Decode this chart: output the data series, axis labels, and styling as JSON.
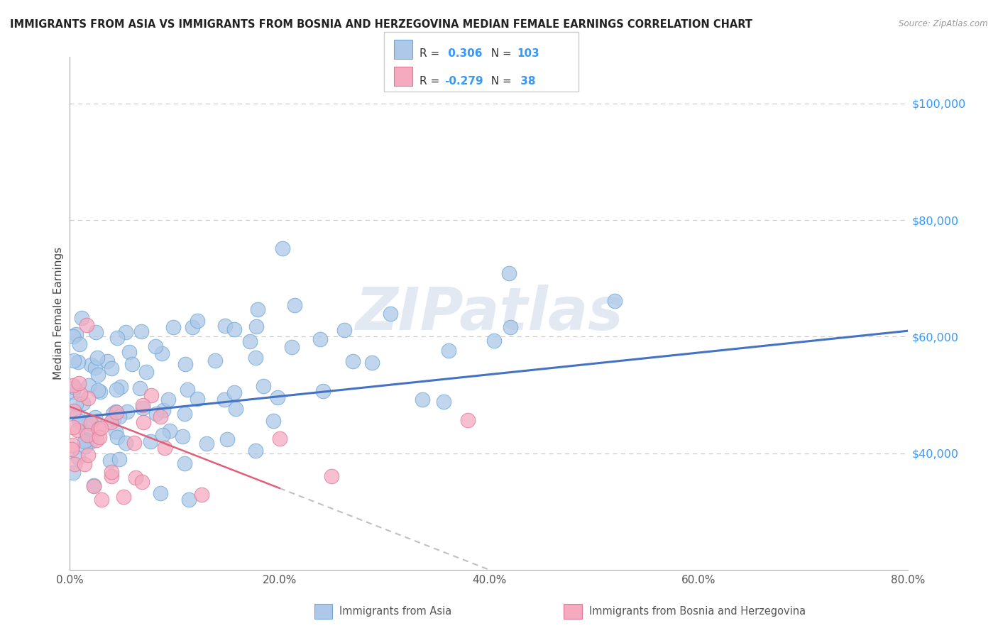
{
  "title": "IMMIGRANTS FROM ASIA VS IMMIGRANTS FROM BOSNIA AND HERZEGOVINA MEDIAN FEMALE EARNINGS CORRELATION CHART",
  "source": "Source: ZipAtlas.com",
  "ylabel": "Median Female Earnings",
  "watermark": "ZIPatlas",
  "series1_R": 0.306,
  "series1_N": 103,
  "series2_R": -0.279,
  "series2_N": 38,
  "color_blue_scatter": "#adc8e8",
  "color_blue_edge": "#6fa8d8",
  "color_blue_line": "#4472c4",
  "color_pink_scatter": "#f5aabf",
  "color_pink_edge": "#e07898",
  "color_pink_line": "#e0607a",
  "color_dashed": "#c0c0c0",
  "grid_color": "#cccccc",
  "right_tick_color": "#3399ff",
  "xlim": [
    0,
    80
  ],
  "ylim": [
    20000,
    108000
  ],
  "yticks": [
    40000,
    60000,
    80000,
    100000
  ],
  "ytick_labels": [
    "$40,000",
    "$60,000",
    "$80,000",
    "$100,000"
  ],
  "xticks": [
    0,
    20,
    40,
    60,
    80
  ],
  "xtick_labels": [
    "0.0%",
    "20.0%",
    "40.0%",
    "60.0%",
    "80.0%"
  ],
  "blue_trend_y0": 46000,
  "blue_trend_y80": 61000,
  "pink_trend_y0": 48000,
  "pink_trend_yend": 34000,
  "pink_solid_xmax": 20,
  "seed1": 42,
  "seed2": 77
}
